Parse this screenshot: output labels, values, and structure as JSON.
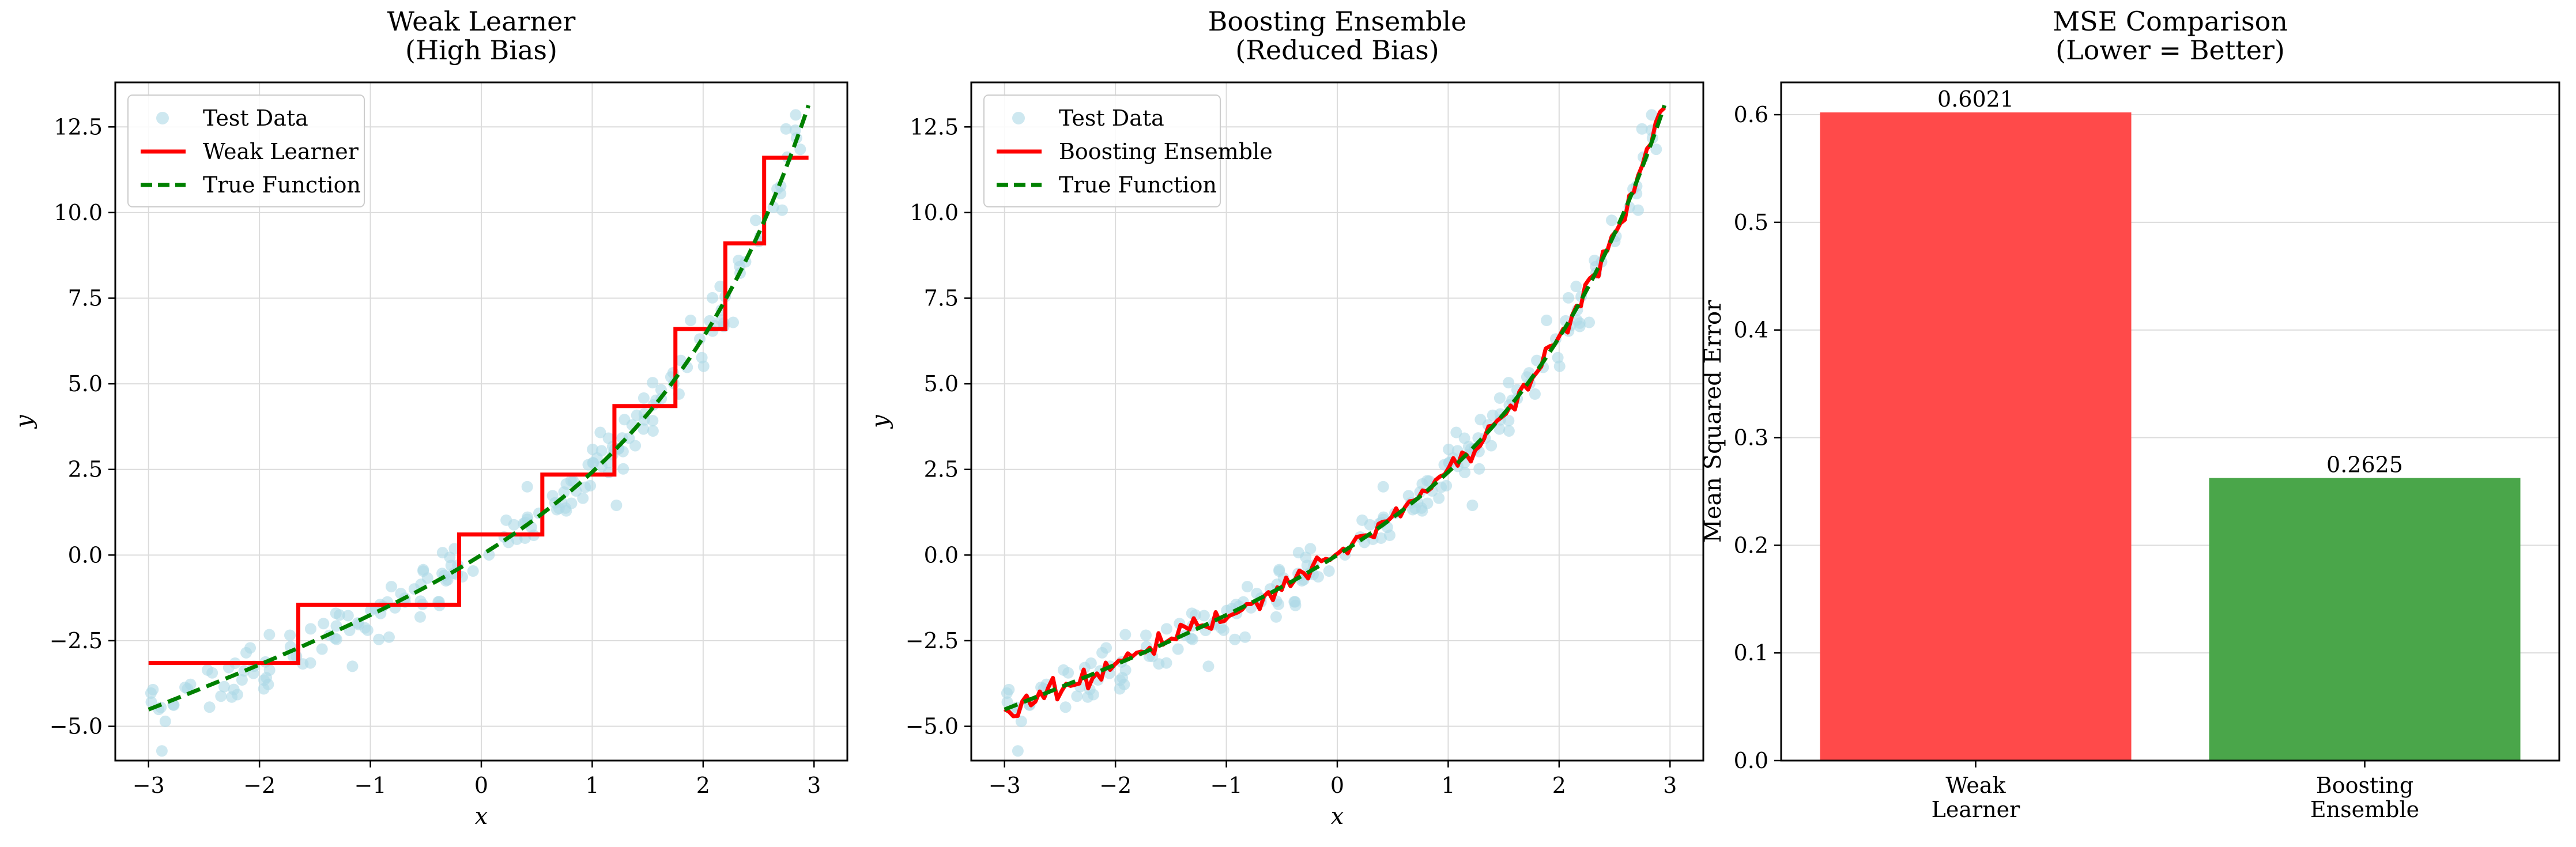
{
  "chart_data": [
    {
      "type": "scatter",
      "title": "Weak Learner\n(High Bias)",
      "xlabel": "x",
      "ylabel": "y",
      "xlim": [
        -3.3,
        3.3
      ],
      "ylim": [
        -6.0,
        13.8
      ],
      "xticks": [
        -3,
        -2,
        -1,
        0,
        1,
        2,
        3
      ],
      "yticks": [
        -5.0,
        -2.5,
        0.0,
        2.5,
        5.0,
        7.5,
        10.0,
        12.5
      ],
      "xtick_labels": [
        "−3",
        "−2",
        "−1",
        "0",
        "1",
        "2",
        "3"
      ],
      "ytick_labels": [
        "−5.0",
        "−2.5",
        "0.0",
        "2.5",
        "5.0",
        "7.5",
        "10.0",
        "12.5"
      ],
      "grid": true,
      "legend": "top-left",
      "series": [
        {
          "name": "Test Data",
          "kind": "scatter",
          "color": "#add8e6"
        },
        {
          "name": "Weak Learner",
          "kind": "step",
          "color": "#ff0000",
          "steps": [
            [
              -3.0,
              -1.65,
              -3.15
            ],
            [
              -1.65,
              -0.2,
              -1.45
            ],
            [
              -0.2,
              0.55,
              0.6
            ],
            [
              0.55,
              1.2,
              2.35
            ],
            [
              1.2,
              1.75,
              4.35
            ],
            [
              1.75,
              2.2,
              6.6
            ],
            [
              2.2,
              2.55,
              9.1
            ],
            [
              2.55,
              2.95,
              11.6
            ]
          ]
        },
        {
          "name": "True Function",
          "kind": "line",
          "color": "#008000",
          "style": "dashed"
        }
      ]
    },
    {
      "type": "scatter",
      "title": "Boosting Ensemble\n(Reduced Bias)",
      "xlabel": "x",
      "ylabel": "y",
      "xlim": [
        -3.3,
        3.3
      ],
      "ylim": [
        -6.0,
        13.8
      ],
      "xticks": [
        -3,
        -2,
        -1,
        0,
        1,
        2,
        3
      ],
      "yticks": [
        -5.0,
        -2.5,
        0.0,
        2.5,
        5.0,
        7.5,
        10.0,
        12.5
      ],
      "xtick_labels": [
        "−3",
        "−2",
        "−1",
        "0",
        "1",
        "2",
        "3"
      ],
      "ytick_labels": [
        "−5.0",
        "−2.5",
        "0.0",
        "2.5",
        "5.0",
        "7.5",
        "10.0",
        "12.5"
      ],
      "grid": true,
      "legend": "top-left",
      "series": [
        {
          "name": "Test Data",
          "kind": "scatter",
          "color": "#add8e6"
        },
        {
          "name": "Boosting Ensemble",
          "kind": "line",
          "color": "#ff0000"
        },
        {
          "name": "True Function",
          "kind": "line",
          "color": "#008000",
          "style": "dashed"
        }
      ]
    },
    {
      "type": "bar",
      "title": "MSE Comparison\n(Lower = Better)",
      "xlabel": "",
      "ylabel": "Mean Squared Error",
      "ylim": [
        0,
        0.63
      ],
      "yticks": [
        0.0,
        0.1,
        0.2,
        0.3,
        0.4,
        0.5,
        0.6
      ],
      "ytick_labels": [
        "0.0",
        "0.1",
        "0.2",
        "0.3",
        "0.4",
        "0.5",
        "0.6"
      ],
      "grid": true,
      "categories": [
        "Weak\nLearner",
        "Boosting\nEnsemble"
      ],
      "values": [
        0.6021,
        0.2625
      ],
      "value_labels": [
        "0.6021",
        "0.2625"
      ],
      "colors": [
        "#ff4a4a",
        "#4aa64a"
      ]
    }
  ]
}
